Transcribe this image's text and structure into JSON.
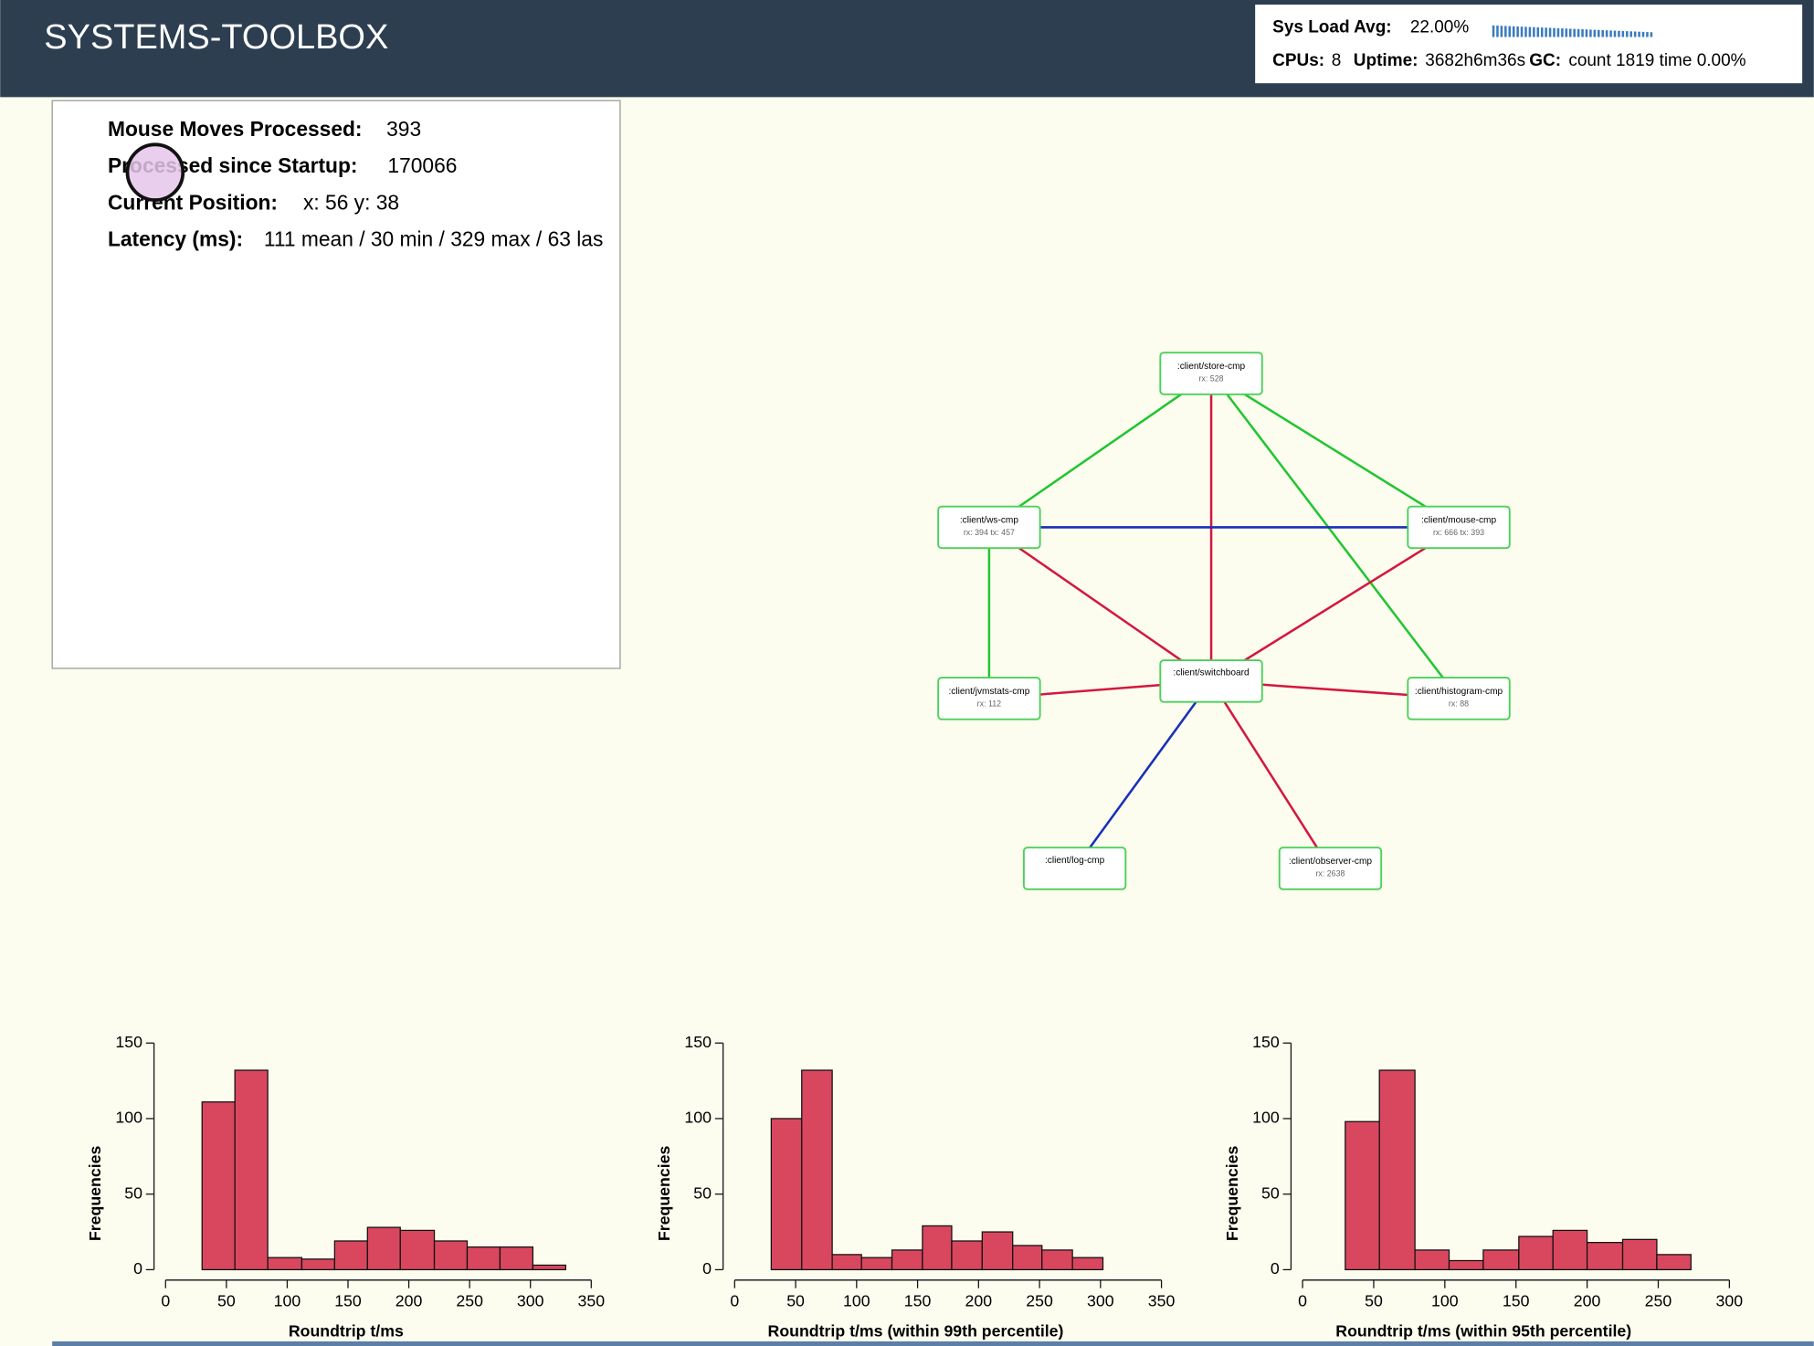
{
  "header": {
    "title": "SYSTEMS-TOOLBOX"
  },
  "sysinfo": {
    "load_label": "Sys Load Avg:",
    "load_value": "22.00%",
    "cpus_label": "CPUs:",
    "cpus_value": "8",
    "uptime_label": "Uptime:",
    "uptime_value": "3682h6m36s",
    "gc_label": "GC:",
    "gc_value": "count 1819 time 0.00%"
  },
  "stats": [
    {
      "label": "Mouse Moves Processed:",
      "value": "393"
    },
    {
      "label": "Processed since Startup:",
      "value": "170066"
    },
    {
      "label": "Current Position:",
      "value": "x: 56 y: 38"
    },
    {
      "label": "Latency (ms):",
      "value": "111 mean / 30 min / 329 max / 63 las"
    }
  ],
  "nodes": [
    {
      "label": ":client/store-cmp",
      "info": "rx: 528"
    },
    {
      "label": ":client/ws-cmp",
      "info": "rx: 394 tx: 457"
    },
    {
      "label": ":client/mouse-cmp",
      "info": "rx: 666 tx: 393"
    },
    {
      "label": ":client/switchboard"
    },
    {
      "label": ":client/jvmstats-cmp",
      "info": "rx: 112"
    },
    {
      "label": ":client/histogram-cmp",
      "info": "rx: 88"
    },
    {
      "label": ":client/log-cmp"
    },
    {
      "label": ":client/observer-cmp",
      "info": "rx: 2638"
    }
  ],
  "chart_data": [
    {
      "type": "histogram",
      "x_label": "Roundtrip t/ms",
      "y_label": "Frequencies",
      "color": "#d9475f",
      "bins": [
        30,
        57,
        84,
        112,
        139,
        166,
        193,
        221,
        248,
        275,
        302,
        329
      ],
      "values": [
        111,
        132,
        8,
        7,
        19,
        28,
        26,
        19,
        15,
        15,
        3
      ],
      "xlim": [
        0,
        350
      ],
      "xticks": [
        0,
        50,
        100,
        150,
        200,
        250,
        300,
        350
      ],
      "ylim": [
        0,
        150
      ],
      "yticks": [
        0,
        50,
        100,
        150
      ]
    },
    {
      "type": "histogram",
      "x_label": "Roundtrip t/ms (within 99th percentile)",
      "y_label": "Frequencies",
      "color": "#d9475f",
      "bins": [
        30,
        55,
        80,
        104,
        129,
        154,
        178,
        203,
        228,
        252,
        277,
        302
      ],
      "values": [
        100,
        132,
        10,
        8,
        13,
        29,
        19,
        25,
        16,
        13,
        8
      ],
      "xlim": [
        0,
        350
      ],
      "xticks": [
        0,
        50,
        100,
        150,
        200,
        250,
        300,
        350
      ],
      "ylim": [
        0,
        150
      ],
      "yticks": [
        0,
        50,
        100,
        150
      ]
    },
    {
      "type": "histogram",
      "x_label": "Roundtrip t/ms (within 95th percentile)",
      "y_label": "Frequencies",
      "color": "#d9475f",
      "bins": [
        30,
        54,
        79,
        103,
        127,
        152,
        176,
        200,
        225,
        249,
        273
      ],
      "values": [
        98,
        132,
        13,
        6,
        13,
        22,
        26,
        18,
        20,
        10
      ],
      "xlim": [
        0,
        300
      ],
      "xticks": [
        0,
        50,
        100,
        150,
        200,
        250,
        300
      ],
      "ylim": [
        0,
        150
      ],
      "yticks": [
        0,
        50,
        100,
        150
      ]
    }
  ]
}
